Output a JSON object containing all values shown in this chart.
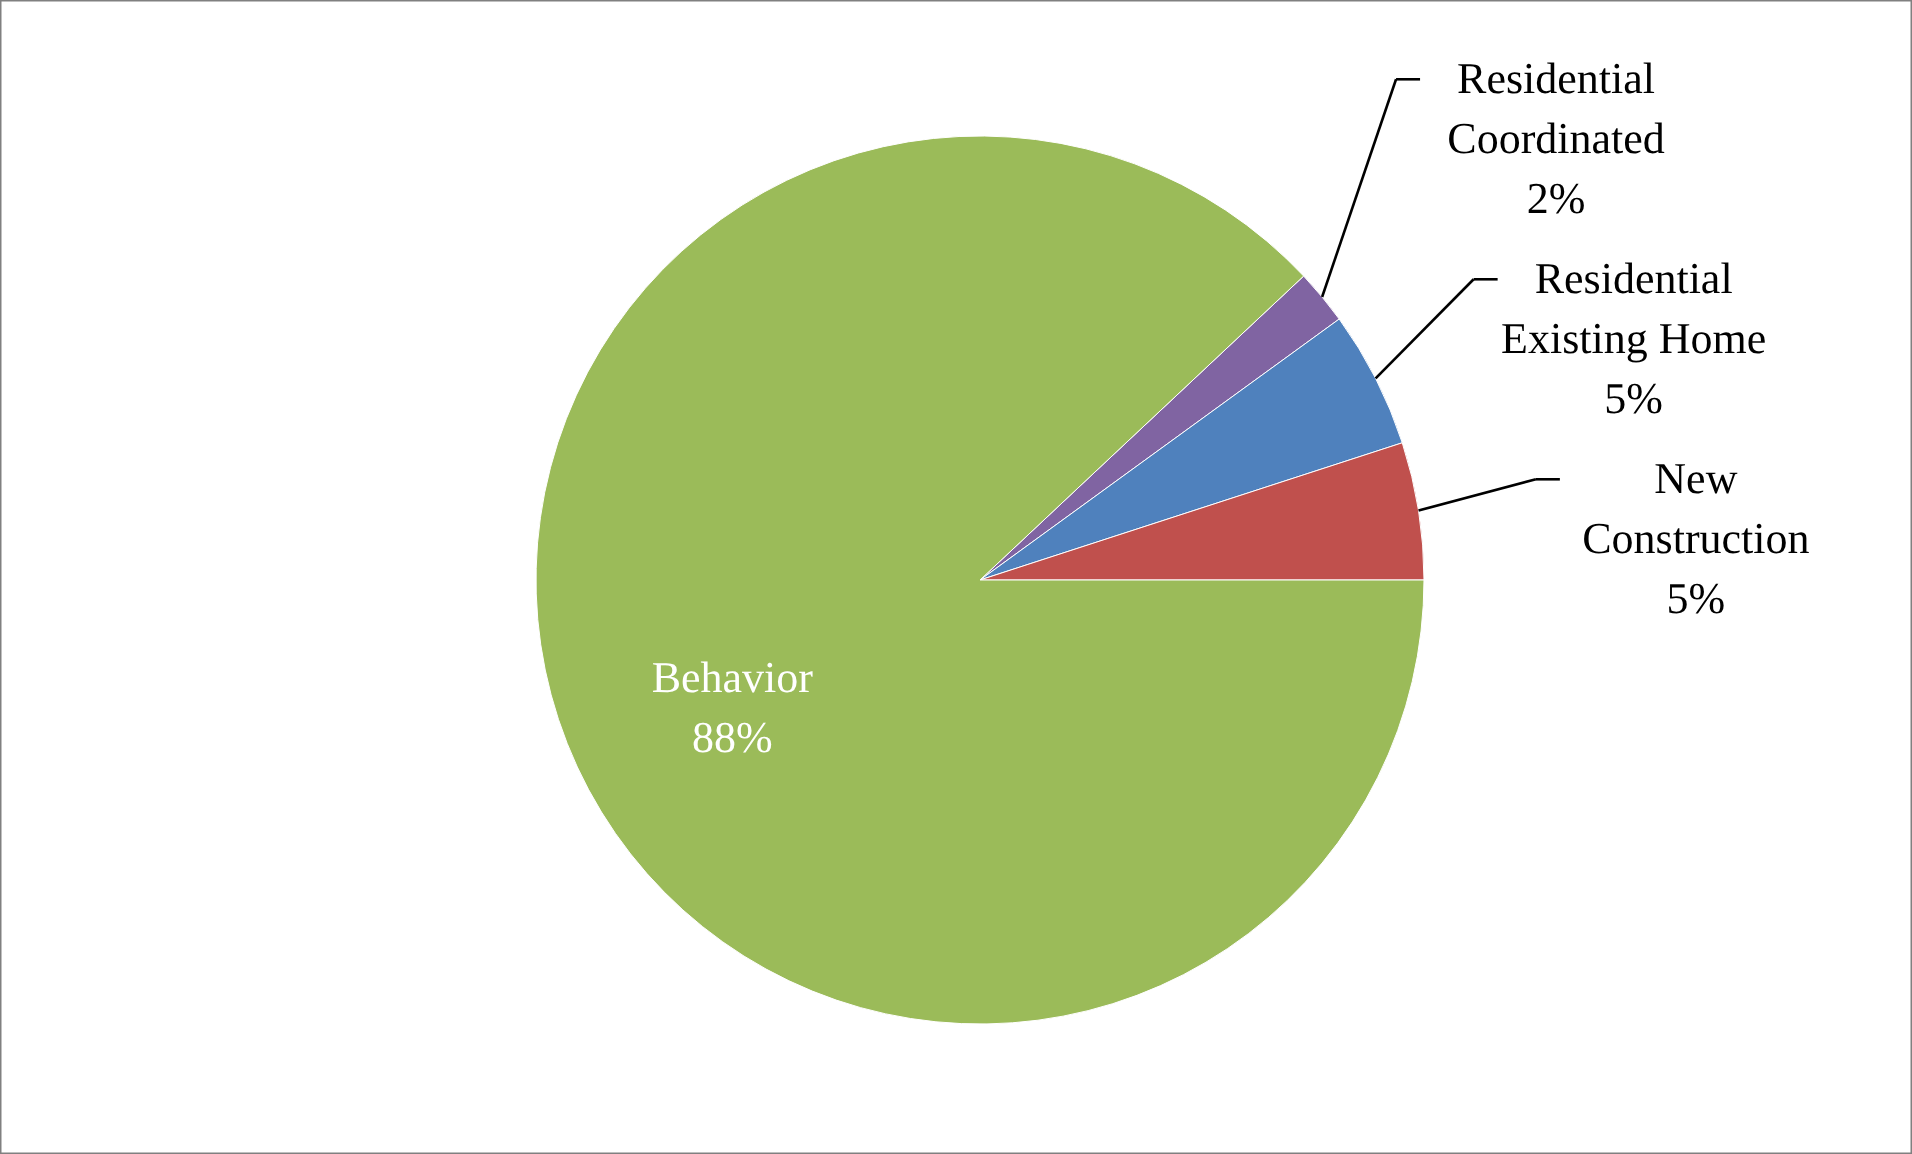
{
  "chart_data": {
    "type": "pie",
    "categories": [
      "Residential Coordinated",
      "Residential Existing Home",
      "New Construction",
      "Behavior"
    ],
    "values": [
      2,
      5,
      5,
      88
    ],
    "colors": [
      "#8064a2",
      "#4f81bd",
      "#c0504d",
      "#9bbb59"
    ],
    "value_labels": [
      "2%",
      "5%",
      "5%",
      "88%"
    ]
  }
}
